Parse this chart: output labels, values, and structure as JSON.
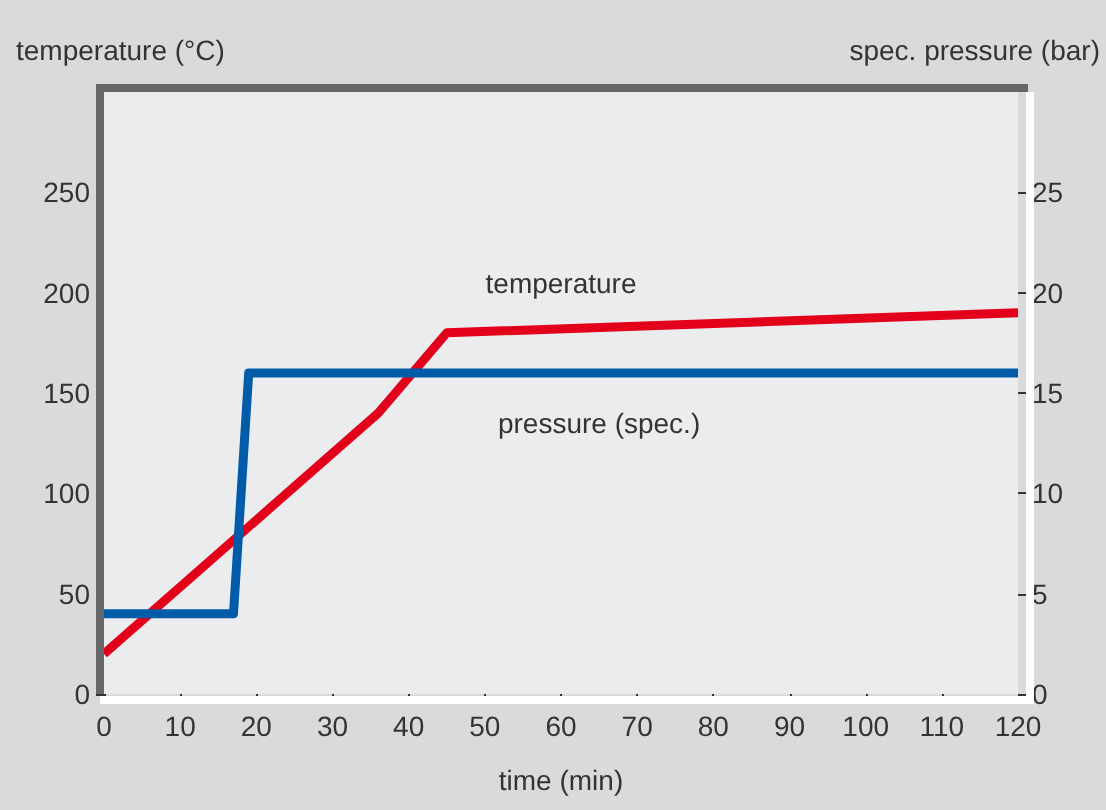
{
  "chart_data": {
    "type": "line",
    "xlabel": "time (min)",
    "ylabel": "temperature (°C)",
    "y2label": "spec. pressure (bar)",
    "xlim": [
      0,
      120
    ],
    "xticks": [
      0,
      10,
      20,
      30,
      40,
      50,
      60,
      70,
      80,
      90,
      100,
      110,
      120
    ],
    "ylim": [
      0,
      300
    ],
    "yticks": [
      0,
      50,
      100,
      150,
      200,
      250
    ],
    "y2lim": [
      0,
      30
    ],
    "y2ticks": [
      0,
      5,
      10,
      15,
      20,
      25
    ],
    "grid": false,
    "legend": false,
    "marker": "none",
    "line_style": "solid",
    "series": [
      {
        "name": "temperature",
        "color": "#e2001a",
        "x": [
          0,
          36,
          45,
          120
        ],
        "values": [
          20,
          140,
          180,
          190
        ]
      },
      {
        "name": "pressure (spec.)",
        "color": "#005ca9",
        "axis": "y2",
        "x": [
          0,
          17,
          19,
          120
        ],
        "values": [
          4,
          4,
          16,
          16
        ]
      }
    ]
  }
}
